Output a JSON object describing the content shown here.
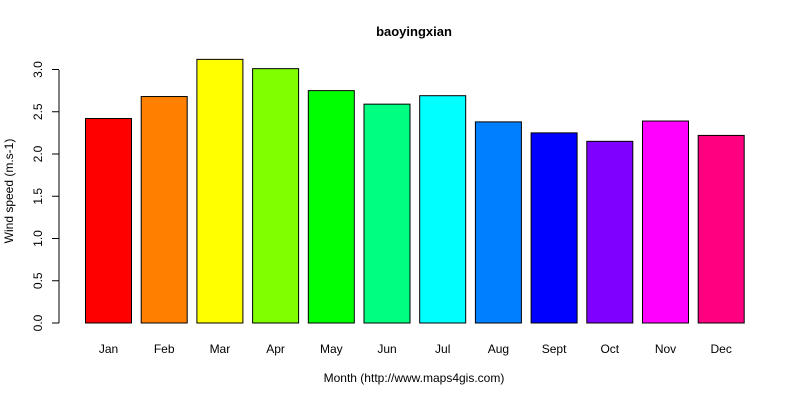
{
  "chart_data": {
    "type": "bar",
    "title": "baoyingxian",
    "xlabel": "Month (http://www.maps4gis.com)",
    "ylabel": "Wind speed (m.s-1)",
    "ylim": [
      0,
      3.0
    ],
    "yticks": [
      "0.0",
      "0.5",
      "1.0",
      "1.5",
      "2.0",
      "2.5",
      "3.0"
    ],
    "categories": [
      "Jan",
      "Feb",
      "Mar",
      "Apr",
      "May",
      "Jun",
      "Jul",
      "Aug",
      "Sept",
      "Oct",
      "Nov",
      "Dec"
    ],
    "values": [
      2.42,
      2.68,
      3.12,
      3.01,
      2.75,
      2.59,
      2.69,
      2.38,
      2.25,
      2.15,
      2.39,
      2.22
    ],
    "colors": [
      "#FF0000",
      "#FF8000",
      "#FFFF00",
      "#80FF00",
      "#00FF00",
      "#00FF80",
      "#00FFFF",
      "#0080FF",
      "#0000FF",
      "#8000FF",
      "#FF00FF",
      "#FF0080"
    ],
    "grid": false,
    "legend": "none"
  }
}
